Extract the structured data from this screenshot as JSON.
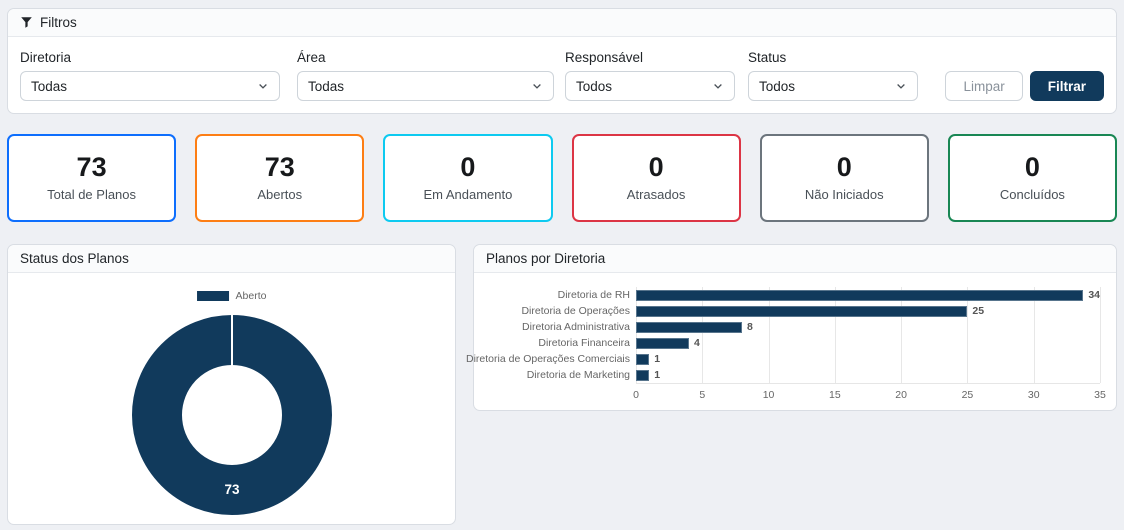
{
  "colors": {
    "navy": "#113a5c",
    "page_bg": "#eef0f4",
    "muted_text": "#666666",
    "grid_line": "#e7e7e7"
  },
  "filters": {
    "title": "Filtros",
    "fields": [
      {
        "label": "Diretoria",
        "value": "Todas"
      },
      {
        "label": "Área",
        "value": "Todas"
      },
      {
        "label": "Responsável",
        "value": "Todos"
      },
      {
        "label": "Status",
        "value": "Todos"
      }
    ],
    "clear_label": "Limpar",
    "apply_label": "Filtrar"
  },
  "kpis": [
    {
      "value": "73",
      "label": "Total de Planos",
      "border_color": "#0d6efd"
    },
    {
      "value": "73",
      "label": "Abertos",
      "border_color": "#fd7e14"
    },
    {
      "value": "0",
      "label": "Em Andamento",
      "border_color": "#0dcaf0"
    },
    {
      "value": "0",
      "label": "Atrasados",
      "border_color": "#dc3545"
    },
    {
      "value": "0",
      "label": "Não Iniciados",
      "border_color": "#6c757d"
    },
    {
      "value": "0",
      "label": "Concluídos",
      "border_color": "#198754"
    }
  ],
  "status_chart_title": "Status dos Planos",
  "diretoria_chart_title": "Planos por Diretoria",
  "chart_data": [
    {
      "type": "pie",
      "title": "Status dos Planos",
      "labels": [
        "Aberto"
      ],
      "values": [
        73
      ],
      "colors": [
        "#113a5c"
      ],
      "donut": true,
      "center_label": "73",
      "legend_position": "top"
    },
    {
      "type": "bar",
      "title": "Planos por Diretoria",
      "orientation": "horizontal",
      "categories": [
        "Diretoria de RH",
        "Diretoria de Operações",
        "Diretoria Administrativa",
        "Diretoria Financeira",
        "Diretoria de Operações Comerciais",
        "Diretoria de Marketing"
      ],
      "values": [
        34,
        25,
        8,
        4,
        1,
        1
      ],
      "bar_color": "#113a5c",
      "xlim": [
        0,
        35
      ],
      "xticks": [
        0,
        5,
        10,
        15,
        20,
        25,
        30,
        35
      ],
      "grid": true,
      "legend": false
    }
  ]
}
